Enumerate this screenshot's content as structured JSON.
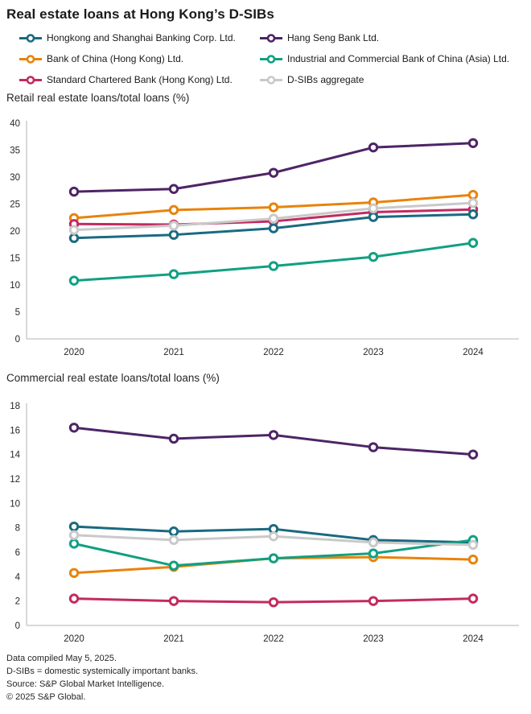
{
  "page": {
    "title": "Real estate loans at Hong Kong’s D-SIBs"
  },
  "colors": {
    "hsbc": "#1a6a80",
    "hangseng": "#4e2466",
    "boc": "#e8830c",
    "icbc": "#10a082",
    "scb": "#c32a60",
    "aggregate": "#c9c9c9",
    "axis_line": "#b3b3b3",
    "tick_text": "#262626",
    "marker_fill": "#ffffff"
  },
  "series_info": [
    {
      "id": "hsbc",
      "label": "Hongkong and Shanghai Banking Corp. Ltd."
    },
    {
      "id": "hangseng",
      "label": "Hang Seng Bank Ltd."
    },
    {
      "id": "boc",
      "label": "Bank of China (Hong Kong) Ltd."
    },
    {
      "id": "icbc",
      "label": "Industrial and Commercial Bank of China (Asia) Ltd."
    },
    {
      "id": "scb",
      "label": "Standard Chartered Bank (Hong Kong) Ltd."
    },
    {
      "id": "aggregate",
      "label": "D-SIBs aggregate"
    }
  ],
  "legend": {
    "columns": [
      [
        "hsbc",
        "boc",
        "scb"
      ],
      [
        "hangseng",
        "icbc",
        "aggregate"
      ]
    ]
  },
  "chart_data": [
    {
      "type": "line",
      "title": "Retail real estate loans/total loans (%)",
      "categories": [
        "2020",
        "2021",
        "2022",
        "2023",
        "2024"
      ],
      "ylim": [
        0,
        40
      ],
      "ytick_step": 5,
      "grid": false,
      "legend_position": "top-shared",
      "series": [
        {
          "id": "hangseng",
          "name": "Hang Seng Bank Ltd.",
          "values": [
            27.3,
            27.8,
            30.8,
            35.5,
            36.3
          ]
        },
        {
          "id": "boc",
          "name": "Bank of China (Hong Kong) Ltd.",
          "values": [
            22.4,
            23.9,
            24.4,
            25.3,
            26.7
          ]
        },
        {
          "id": "scb",
          "name": "Standard Chartered Bank (Hong Kong) Ltd.",
          "values": [
            21.3,
            21.2,
            21.8,
            23.5,
            24.0
          ]
        },
        {
          "id": "hsbc",
          "name": "Hongkong and Shanghai Banking Corp. Ltd.",
          "values": [
            18.7,
            19.3,
            20.5,
            22.6,
            23.1
          ]
        },
        {
          "id": "icbc",
          "name": "Industrial and Commercial Bank of China (Asia) Ltd.",
          "values": [
            10.8,
            12.0,
            13.5,
            15.2,
            17.8
          ]
        },
        {
          "id": "aggregate",
          "name": "D-SIBs aggregate",
          "values": [
            20.2,
            21.0,
            22.3,
            24.2,
            25.2
          ]
        }
      ]
    },
    {
      "type": "line",
      "title": "Commercial real estate loans/total loans (%)",
      "categories": [
        "2020",
        "2021",
        "2022",
        "2023",
        "2024"
      ],
      "ylim": [
        0,
        18
      ],
      "ytick_step": 2,
      "grid": false,
      "legend_position": "top-shared",
      "series": [
        {
          "id": "hangseng",
          "name": "Hang Seng Bank Ltd.",
          "values": [
            16.2,
            15.3,
            15.6,
            14.6,
            14.0
          ]
        },
        {
          "id": "boc",
          "name": "Bank of China (Hong Kong) Ltd.",
          "values": [
            4.3,
            4.8,
            5.5,
            5.6,
            5.4
          ]
        },
        {
          "id": "scb",
          "name": "Standard Chartered Bank (Hong Kong) Ltd.",
          "values": [
            2.2,
            2.0,
            1.9,
            2.0,
            2.2
          ]
        },
        {
          "id": "hsbc",
          "name": "Hongkong and Shanghai Banking Corp. Ltd.",
          "values": [
            8.1,
            7.7,
            7.9,
            7.0,
            6.8
          ]
        },
        {
          "id": "icbc",
          "name": "Industrial and Commercial Bank of China (Asia) Ltd.",
          "values": [
            6.7,
            4.9,
            5.5,
            5.9,
            7.0
          ]
        },
        {
          "id": "aggregate",
          "name": "D-SIBs aggregate",
          "values": [
            7.4,
            7.0,
            7.3,
            6.8,
            6.6
          ]
        }
      ]
    }
  ],
  "footer": {
    "lines": [
      "Data compiled May 5, 2025.",
      "D-SIBs = domestic systemically important banks.",
      "Source: S&P Global Market Intelligence.",
      "© 2025 S&P Global."
    ]
  }
}
